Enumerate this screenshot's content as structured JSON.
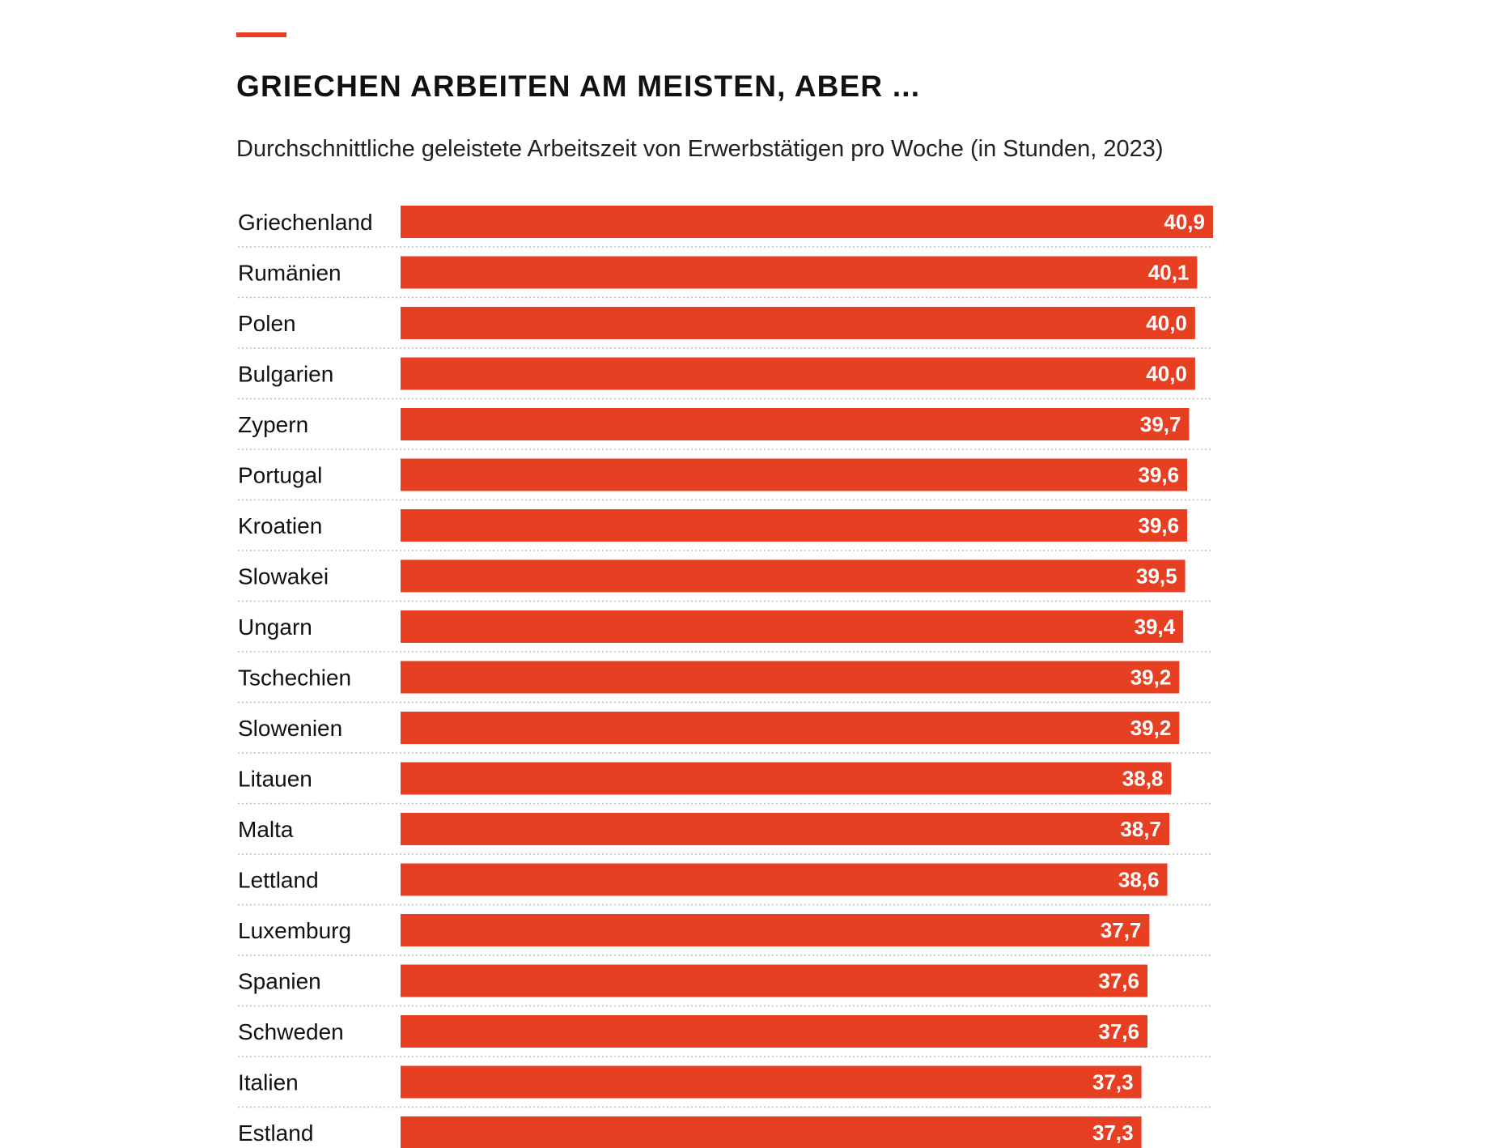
{
  "colors": {
    "accent": "#e63f22",
    "bar": "#e63f22",
    "value_text": "#ffffff",
    "label_text": "#111111",
    "divider": "#bdbdbd"
  },
  "chart_data": {
    "type": "bar",
    "orientation": "horizontal",
    "title": "GRIECHEN ARBEITEN AM MEISTEN, ABER ...",
    "subtitle": "Durchschnittliche geleistete Arbeitszeit von Erwerbstätigen pro Woche (in Stunden, 2023)",
    "xlim": [
      0,
      40.9
    ],
    "grid": false,
    "legend": "none",
    "categories": [
      "Griechenland",
      "Rumänien",
      "Polen",
      "Bulgarien",
      "Zypern",
      "Portugal",
      "Kroatien",
      "Slowakei",
      "Ungarn",
      "Tschechien",
      "Slowenien",
      "Litauen",
      "Malta",
      "Lettland",
      "Luxemburg",
      "Spanien",
      "Schweden",
      "Italien",
      "Estland"
    ],
    "values": [
      40.9,
      40.1,
      40.0,
      40.0,
      39.7,
      39.6,
      39.6,
      39.5,
      39.4,
      39.2,
      39.2,
      38.8,
      38.7,
      38.6,
      37.7,
      37.6,
      37.6,
      37.3,
      37.3
    ],
    "value_labels": [
      "40,9",
      "40,1",
      "40,0",
      "40,0",
      "39,7",
      "39,6",
      "39,6",
      "39,5",
      "39,4",
      "39,2",
      "39,2",
      "38,8",
      "38,7",
      "38,6",
      "37,7",
      "37,6",
      "37,6",
      "37,3",
      "37,3"
    ]
  }
}
